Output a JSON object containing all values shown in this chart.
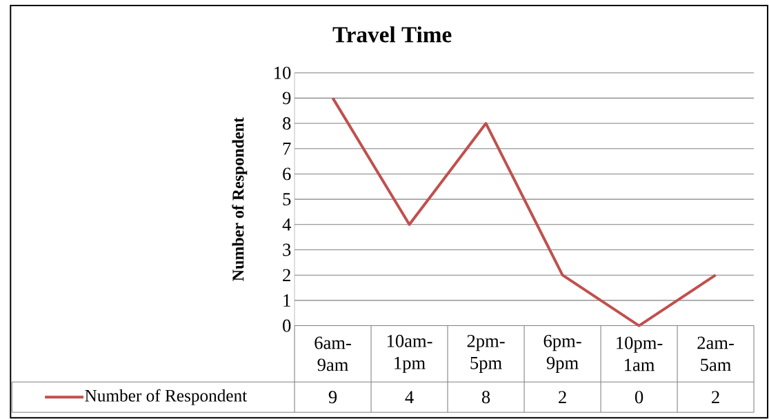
{
  "chart_data": {
    "type": "line",
    "title": "Travel Time",
    "ylabel": "Number of Respondent",
    "categories": [
      "6am-9am",
      "10am-1pm",
      "2pm-5pm",
      "6pm-9pm",
      "10pm-1am",
      "2am-5am"
    ],
    "series": [
      {
        "name": "Number of Respondent",
        "color": "#c0504d",
        "values": [
          9,
          4,
          8,
          2,
          0,
          2
        ]
      }
    ],
    "ylim": [
      0,
      10
    ],
    "yticks": [
      0,
      1,
      2,
      3,
      4,
      5,
      6,
      7,
      8,
      9,
      10
    ],
    "grid": "y",
    "legend": "bottom",
    "data_labels": true,
    "marker": "none",
    "line_style": "solid"
  }
}
